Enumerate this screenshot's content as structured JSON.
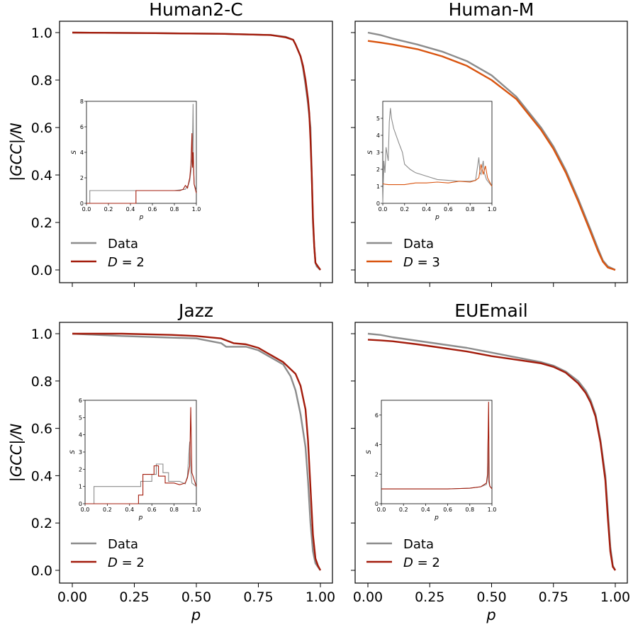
{
  "colors": {
    "data": "#8c8c8c",
    "model_red": "#a31c0c",
    "model_orange": "#d9540f",
    "axis": "#000000"
  },
  "main_axis": {
    "xticks": [
      "0.00",
      "0.25",
      "0.50",
      "0.75",
      "1.00"
    ],
    "yticks": [
      "0.0",
      "0.2",
      "0.4",
      "0.6",
      "0.8",
      "1.0"
    ],
    "xlabel": "p",
    "ylabel": "|GCC|/N"
  },
  "chart_data": [
    {
      "type": "line",
      "title": "Human2-C",
      "xlabel": "",
      "ylabel": "|GCC|/N",
      "xlim": [
        0,
        1
      ],
      "ylim": [
        0,
        1
      ],
      "legend": "lower-left",
      "series": [
        {
          "name": "Data",
          "color": "#8c8c8c",
          "x": [
            0,
            0.3,
            0.6,
            0.8,
            0.86,
            0.89,
            0.9,
            0.92,
            0.93,
            0.94,
            0.95,
            0.96,
            0.965,
            0.97,
            0.975,
            0.98,
            0.985,
            0.99,
            1.0
          ],
          "y": [
            1.0,
            0.998,
            0.995,
            0.99,
            0.982,
            0.97,
            0.95,
            0.9,
            0.85,
            0.78,
            0.7,
            0.6,
            0.4,
            0.2,
            0.1,
            0.03,
            0.015,
            0.01,
            0.0
          ]
        },
        {
          "name": "D = 2",
          "color": "#a31c0c",
          "x": [
            0,
            0.3,
            0.6,
            0.8,
            0.86,
            0.89,
            0.9,
            0.92,
            0.93,
            0.94,
            0.95,
            0.955,
            0.96,
            0.965,
            0.97,
            0.975,
            0.98,
            0.99,
            1.0
          ],
          "y": [
            1.0,
            0.998,
            0.995,
            0.99,
            0.98,
            0.97,
            0.95,
            0.9,
            0.86,
            0.8,
            0.72,
            0.66,
            0.55,
            0.4,
            0.22,
            0.1,
            0.03,
            0.015,
            0.0
          ]
        }
      ],
      "inset": {
        "xlabel": "p",
        "ylabel": "S",
        "xlim": [
          0,
          1
        ],
        "ylim": [
          0,
          8
        ],
        "xticks": [
          "0.0",
          "0.2",
          "0.4",
          "0.6",
          "0.8",
          "1.0"
        ],
        "yticks": [
          "0",
          "2",
          "4",
          "6",
          "8"
        ],
        "series": [
          {
            "name": "Data",
            "color": "#8c8c8c",
            "x": [
              0,
              0.03,
              0.03,
              0.5,
              0.8,
              0.9,
              0.93,
              0.94,
              0.95,
              0.96,
              0.965,
              0.97,
              0.975,
              0.98,
              1.0
            ],
            "y": [
              0,
              0,
              1,
              1,
              1,
              1.1,
              1.5,
              1.8,
              2.5,
              3.5,
              5.0,
              7.8,
              3.0,
              1.5,
              1.0
            ]
          },
          {
            "name": "D = 2",
            "color": "#a31c0c",
            "x": [
              0,
              0.45,
              0.45,
              0.85,
              0.88,
              0.9,
              0.92,
              0.93,
              0.94,
              0.95,
              0.96,
              0.965,
              0.97,
              0.98,
              1.0
            ],
            "y": [
              0,
              0,
              1,
              1,
              1.1,
              1.4,
              1.2,
              1.6,
              2.0,
              3.0,
              5.5,
              2.8,
              4.0,
              1.5,
              0.8
            ]
          }
        ]
      }
    },
    {
      "type": "line",
      "title": "Human-M",
      "xlabel": "",
      "ylabel": "",
      "xlim": [
        0,
        1
      ],
      "ylim": [
        0,
        1
      ],
      "legend": "lower-left",
      "series": [
        {
          "name": "Data",
          "color": "#8c8c8c",
          "x": [
            0,
            0.05,
            0.1,
            0.2,
            0.3,
            0.4,
            0.5,
            0.6,
            0.7,
            0.75,
            0.8,
            0.85,
            0.9,
            0.93,
            0.95,
            0.97,
            1.0
          ],
          "y": [
            1.0,
            0.99,
            0.975,
            0.95,
            0.92,
            0.88,
            0.82,
            0.73,
            0.6,
            0.52,
            0.42,
            0.3,
            0.17,
            0.09,
            0.04,
            0.015,
            0.0
          ]
        },
        {
          "name": "D = 3",
          "color": "#d9540f",
          "x": [
            0,
            0.05,
            0.1,
            0.2,
            0.3,
            0.4,
            0.5,
            0.6,
            0.7,
            0.75,
            0.8,
            0.85,
            0.9,
            0.93,
            0.95,
            0.97,
            1.0
          ],
          "y": [
            0.965,
            0.958,
            0.95,
            0.93,
            0.9,
            0.86,
            0.8,
            0.72,
            0.59,
            0.51,
            0.41,
            0.29,
            0.16,
            0.08,
            0.035,
            0.01,
            0.0
          ]
        }
      ],
      "inset": {
        "xlabel": "p",
        "ylabel": "S",
        "xlim": [
          0,
          1
        ],
        "ylim": [
          0,
          6
        ],
        "xticks": [
          "0.0",
          "0.2",
          "0.4",
          "0.6",
          "0.8",
          "1.0"
        ],
        "yticks": [
          "0",
          "1",
          "2",
          "3",
          "4",
          "5"
        ],
        "series": [
          {
            "name": "Data",
            "color": "#8c8c8c",
            "x": [
              0,
              0.01,
              0.02,
              0.03,
              0.05,
              0.06,
              0.07,
              0.08,
              0.1,
              0.15,
              0.18,
              0.2,
              0.25,
              0.3,
              0.4,
              0.5,
              0.6,
              0.7,
              0.8,
              0.85,
              0.88,
              0.89,
              0.9,
              0.92,
              0.93,
              0.95,
              1.0
            ],
            "y": [
              0,
              2.5,
              1.8,
              3.3,
              2.5,
              4.8,
              5.6,
              5.0,
              4.4,
              3.5,
              3.0,
              2.3,
              2.0,
              1.8,
              1.6,
              1.4,
              1.35,
              1.3,
              1.3,
              1.35,
              2.7,
              1.8,
              1.7,
              2.5,
              1.8,
              1.4,
              1.0
            ]
          },
          {
            "name": "D = 3",
            "color": "#d9540f",
            "x": [
              0,
              0.02,
              0.05,
              0.1,
              0.2,
              0.3,
              0.4,
              0.5,
              0.6,
              0.7,
              0.8,
              0.85,
              0.88,
              0.9,
              0.92,
              0.94,
              0.96,
              1.0
            ],
            "y": [
              1.15,
              1.12,
              1.1,
              1.1,
              1.1,
              1.2,
              1.2,
              1.25,
              1.2,
              1.3,
              1.25,
              1.35,
              1.5,
              2.3,
              1.7,
              2.2,
              1.5,
              1.0
            ]
          }
        ]
      }
    },
    {
      "type": "line",
      "title": "Jazz",
      "xlabel": "p",
      "ylabel": "|GCC|/N",
      "xlim": [
        0,
        1
      ],
      "ylim": [
        0,
        1
      ],
      "legend": "lower-left",
      "series": [
        {
          "name": "Data",
          "color": "#8c8c8c",
          "x": [
            0,
            0.1,
            0.2,
            0.35,
            0.5,
            0.6,
            0.62,
            0.7,
            0.75,
            0.8,
            0.85,
            0.88,
            0.9,
            0.92,
            0.94,
            0.95,
            0.96,
            0.97,
            0.98,
            1.0
          ],
          "y": [
            1.0,
            0.995,
            0.99,
            0.985,
            0.98,
            0.96,
            0.945,
            0.945,
            0.93,
            0.9,
            0.87,
            0.82,
            0.76,
            0.66,
            0.52,
            0.38,
            0.2,
            0.08,
            0.03,
            0.0
          ]
        },
        {
          "name": "D = 2",
          "color": "#a31c0c",
          "x": [
            0,
            0.2,
            0.4,
            0.5,
            0.6,
            0.65,
            0.7,
            0.75,
            0.8,
            0.85,
            0.88,
            0.9,
            0.92,
            0.94,
            0.95,
            0.96,
            0.97,
            0.98,
            0.99,
            1.0
          ],
          "y": [
            1.0,
            1.0,
            0.995,
            0.99,
            0.98,
            0.96,
            0.955,
            0.94,
            0.91,
            0.88,
            0.85,
            0.83,
            0.78,
            0.68,
            0.55,
            0.35,
            0.15,
            0.05,
            0.02,
            0.0
          ]
        }
      ],
      "inset": {
        "xlabel": "p",
        "ylabel": "S",
        "xlim": [
          0,
          1
        ],
        "ylim": [
          0,
          6
        ],
        "xticks": [
          "0.0",
          "0.2",
          "0.4",
          "0.6",
          "0.8",
          "1.0"
        ],
        "yticks": [
          "0",
          "1",
          "2",
          "3",
          "4",
          "5",
          "6"
        ],
        "series": [
          {
            "name": "Data",
            "color": "#8c8c8c",
            "x": [
              0,
              0.08,
              0.08,
              0.5,
              0.5,
              0.6,
              0.6,
              0.64,
              0.64,
              0.7,
              0.7,
              0.75,
              0.75,
              0.8,
              0.85,
              0.9,
              0.92,
              0.94,
              0.95,
              0.96,
              1.0
            ],
            "y": [
              0,
              0,
              1,
              1,
              1.3,
              1.3,
              1.7,
              1.7,
              2.3,
              2.3,
              1.8,
              1.8,
              1.3,
              1.3,
              1.3,
              1.15,
              1.6,
              3.6,
              2.0,
              1.2,
              1.0
            ]
          },
          {
            "name": "D = 2",
            "color": "#a31c0c",
            "x": [
              0,
              0.48,
              0.48,
              0.52,
              0.52,
              0.62,
              0.62,
              0.66,
              0.66,
              0.72,
              0.72,
              0.8,
              0.85,
              0.9,
              0.92,
              0.94,
              0.95,
              0.96,
              1.0
            ],
            "y": [
              0,
              0,
              0.5,
              0.5,
              1.7,
              1.7,
              2.2,
              2.2,
              1.6,
              1.6,
              1.2,
              1.2,
              1.1,
              1.2,
              1.5,
              2.2,
              5.6,
              1.8,
              1.0
            ]
          }
        ]
      }
    },
    {
      "type": "line",
      "title": "EUEmail",
      "xlabel": "p",
      "ylabel": "",
      "xlim": [
        0,
        1
      ],
      "ylim": [
        0,
        1
      ],
      "legend": "lower-left",
      "series": [
        {
          "name": "Data",
          "color": "#8c8c8c",
          "x": [
            0,
            0.05,
            0.1,
            0.2,
            0.3,
            0.4,
            0.5,
            0.6,
            0.7,
            0.75,
            0.8,
            0.85,
            0.88,
            0.9,
            0.92,
            0.94,
            0.96,
            0.97,
            0.98,
            0.99,
            1.0
          ],
          "y": [
            1.0,
            0.995,
            0.985,
            0.97,
            0.955,
            0.94,
            0.92,
            0.9,
            0.88,
            0.865,
            0.84,
            0.8,
            0.76,
            0.72,
            0.66,
            0.55,
            0.4,
            0.25,
            0.1,
            0.02,
            0.0
          ]
        },
        {
          "name": "D = 2",
          "color": "#a31c0c",
          "x": [
            0,
            0.05,
            0.1,
            0.2,
            0.3,
            0.4,
            0.5,
            0.6,
            0.7,
            0.75,
            0.8,
            0.85,
            0.88,
            0.9,
            0.92,
            0.94,
            0.96,
            0.97,
            0.98,
            0.99,
            1.0
          ],
          "y": [
            0.975,
            0.972,
            0.968,
            0.955,
            0.94,
            0.925,
            0.905,
            0.89,
            0.875,
            0.86,
            0.835,
            0.79,
            0.75,
            0.71,
            0.65,
            0.54,
            0.38,
            0.22,
            0.08,
            0.015,
            0.0
          ]
        }
      ],
      "inset": {
        "xlabel": "p",
        "ylabel": "S",
        "xlim": [
          0,
          1
        ],
        "ylim": [
          0,
          7
        ],
        "xticks": [
          "0.0",
          "0.2",
          "0.4",
          "0.6",
          "0.8",
          "1.0"
        ],
        "yticks": [
          "0",
          "2",
          "4",
          "6"
        ],
        "series": [
          {
            "name": "Data",
            "color": "#8c8c8c",
            "x": [
              0,
              0.3,
              0.6,
              0.8,
              0.9,
              0.95,
              0.96,
              0.965,
              0.97,
              0.98,
              1.0
            ],
            "y": [
              1.0,
              1.0,
              1.0,
              1.05,
              1.15,
              1.3,
              1.8,
              4.4,
              1.5,
              1.2,
              1.0
            ]
          },
          {
            "name": "D = 2",
            "color": "#a31c0c",
            "x": [
              0,
              0.3,
              0.6,
              0.8,
              0.9,
              0.95,
              0.96,
              0.97,
              0.975,
              0.98,
              1.0
            ],
            "y": [
              1.0,
              1.0,
              1.0,
              1.05,
              1.15,
              1.4,
              2.0,
              6.9,
              1.6,
              1.2,
              1.0
            ]
          }
        ]
      }
    }
  ]
}
